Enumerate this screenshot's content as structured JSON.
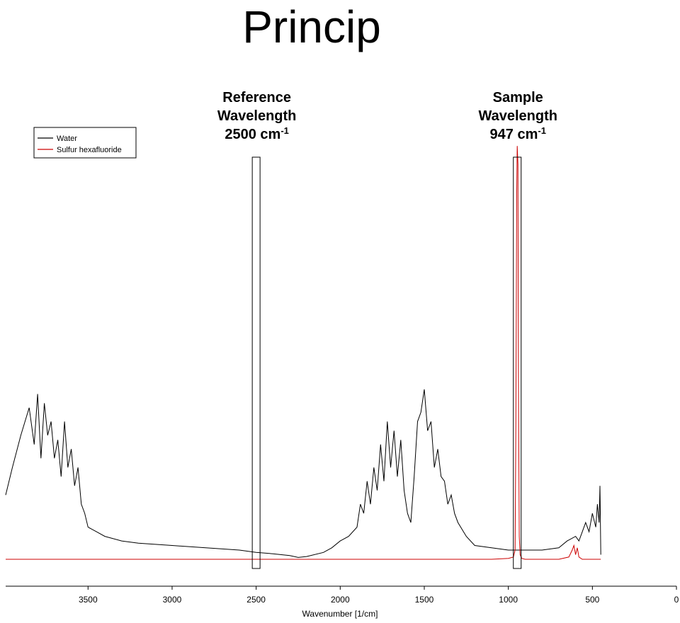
{
  "slide": {
    "title": "Princip"
  },
  "chart_data": {
    "type": "line",
    "xlabel": "Wavenumber [1/cm]",
    "ylabel": "",
    "xlim": [
      3990,
      0
    ],
    "x_reversed": true,
    "grid": false,
    "x_ticks": [
      {
        "value": 3500,
        "label": "3500"
      },
      {
        "value": 3000,
        "label": "3000"
      },
      {
        "value": 2500,
        "label": "2500"
      },
      {
        "value": 2000,
        "label": "2000"
      },
      {
        "value": 1500,
        "label": "1500"
      },
      {
        "value": 1000,
        "label": "1000"
      },
      {
        "value": 500,
        "label": "500"
      },
      {
        "value": 0,
        "label": "0"
      }
    ],
    "legend": {
      "placement": "top-left",
      "entries": [
        {
          "name": "Water",
          "color": "#000000"
        },
        {
          "name": "Sulfur hexafluoride",
          "color": "#cc0000"
        }
      ]
    },
    "annotations": [
      {
        "lines": [
          "Reference",
          "Wavelength"
        ],
        "value": "2500",
        "unit": "cm",
        "exponent": "-1",
        "x": 2500
      },
      {
        "lines": [
          "Sample",
          "Wavelength"
        ],
        "value": "947",
        "unit": "cm",
        "exponent": "-1",
        "x": 947
      }
    ],
    "series": [
      {
        "name": "Water",
        "color": "#000000",
        "x": [
          3990,
          3950,
          3900,
          3850,
          3820,
          3800,
          3780,
          3760,
          3740,
          3720,
          3700,
          3680,
          3660,
          3640,
          3620,
          3600,
          3580,
          3560,
          3540,
          3520,
          3500,
          3450,
          3400,
          3300,
          3200,
          3000,
          2800,
          2600,
          2500,
          2400,
          2300,
          2250,
          2200,
          2100,
          2050,
          2000,
          1950,
          1900,
          1880,
          1860,
          1840,
          1820,
          1800,
          1780,
          1760,
          1740,
          1720,
          1700,
          1680,
          1660,
          1640,
          1620,
          1600,
          1580,
          1560,
          1540,
          1520,
          1500,
          1480,
          1460,
          1440,
          1420,
          1400,
          1380,
          1360,
          1340,
          1320,
          1300,
          1250,
          1200,
          1100,
          1000,
          900,
          800,
          700,
          650,
          600,
          580,
          560,
          540,
          520,
          500,
          480,
          470,
          460,
          455,
          450
        ],
        "y": [
          0.14,
          0.2,
          0.27,
          0.33,
          0.25,
          0.36,
          0.22,
          0.34,
          0.27,
          0.3,
          0.22,
          0.26,
          0.18,
          0.3,
          0.2,
          0.24,
          0.16,
          0.2,
          0.12,
          0.1,
          0.07,
          0.06,
          0.05,
          0.04,
          0.035,
          0.03,
          0.025,
          0.02,
          0.015,
          0.012,
          0.008,
          0.004,
          0.006,
          0.015,
          0.025,
          0.04,
          0.05,
          0.07,
          0.12,
          0.1,
          0.17,
          0.12,
          0.2,
          0.15,
          0.25,
          0.17,
          0.3,
          0.2,
          0.28,
          0.18,
          0.26,
          0.15,
          0.1,
          0.08,
          0.18,
          0.3,
          0.32,
          0.37,
          0.28,
          0.3,
          0.2,
          0.24,
          0.18,
          0.17,
          0.12,
          0.14,
          0.1,
          0.08,
          0.05,
          0.03,
          0.025,
          0.02,
          0.02,
          0.02,
          0.025,
          0.04,
          0.05,
          0.04,
          0.06,
          0.08,
          0.06,
          0.1,
          0.07,
          0.12,
          0.08,
          0.16,
          0.01
        ]
      },
      {
        "name": "Sulfur hexafluoride",
        "color": "#cc0000",
        "x": [
          3990,
          3500,
          3000,
          2500,
          2000,
          1500,
          1100,
          1000,
          970,
          960,
          955,
          950,
          947,
          943,
          940,
          935,
          930,
          920,
          900,
          800,
          700,
          640,
          620,
          610,
          600,
          590,
          580,
          560,
          500,
          460,
          450
        ],
        "y": [
          0,
          0,
          0,
          0,
          0,
          0,
          0,
          0.002,
          0.005,
          0.02,
          0.3,
          0.8,
          0.9,
          0.86,
          0.4,
          0.05,
          0.01,
          0.002,
          0,
          0,
          0,
          0.005,
          0.02,
          0.03,
          0.01,
          0.025,
          0.005,
          0,
          0,
          0,
          0
        ]
      }
    ]
  }
}
